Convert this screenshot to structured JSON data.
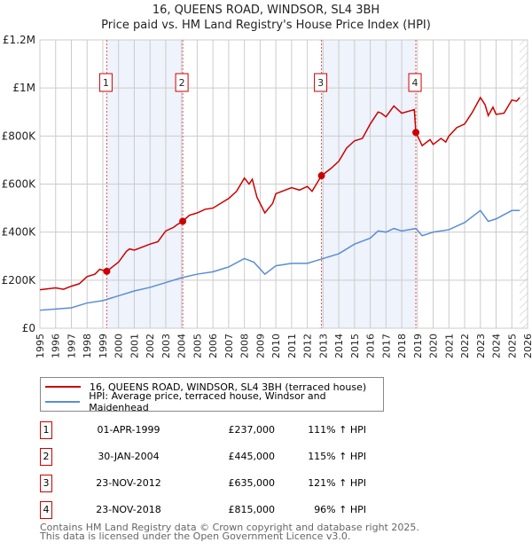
{
  "chart_data": {
    "type": "line",
    "title": "16, QUEENS ROAD, WINDSOR, SL4 3BH",
    "subtitle": "Price paid vs. HM Land Registry's House Price Index (HPI)",
    "xlim": [
      1995,
      2026
    ],
    "ylim": [
      0,
      1200000
    ],
    "x_ticks": [
      "1995",
      "1996",
      "1997",
      "1998",
      "1999",
      "2000",
      "2001",
      "2002",
      "2003",
      "2004",
      "2005",
      "2006",
      "2007",
      "2008",
      "2009",
      "2010",
      "2011",
      "2012",
      "2013",
      "2014",
      "2015",
      "2016",
      "2017",
      "2018",
      "2019",
      "2020",
      "2021",
      "2022",
      "2023",
      "2024",
      "2025",
      "2026"
    ],
    "y_ticks": [
      {
        "v": 0,
        "label": "£0"
      },
      {
        "v": 200000,
        "label": "£200K"
      },
      {
        "v": 400000,
        "label": "£400K"
      },
      {
        "v": 600000,
        "label": "£600K"
      },
      {
        "v": 800000,
        "label": "£800K"
      },
      {
        "v": 1000000,
        "label": "£1M"
      },
      {
        "v": 1200000,
        "label": "£1.2M"
      }
    ],
    "grid": true,
    "shaded_ranges": [
      [
        1999.25,
        2004.08
      ],
      [
        2012.9,
        2018.9
      ]
    ],
    "forecast_from": 2025.5,
    "series": [
      {
        "name": "16, QUEENS ROAD, WINDSOR, SL4 3BH (terraced house)",
        "color": "#cc0000",
        "x": [
          1995,
          1996,
          1996.5,
          1997,
          1997.5,
          1998,
          1998.5,
          1998.8,
          1999.25,
          2000,
          2000.5,
          2000.7,
          2001,
          2002,
          2002.5,
          2003,
          2003.5,
          2003.7,
          2004.08,
          2004.5,
          2005,
          2005.5,
          2006,
          2007,
          2007.5,
          2008,
          2008.3,
          2008.5,
          2008.8,
          2009.3,
          2009.8,
          2010,
          2011,
          2011.5,
          2012,
          2012.3,
          2012.9,
          2013.5,
          2014,
          2014.5,
          2015,
          2015.5,
          2016,
          2016.5,
          2016.7,
          2017,
          2017.5,
          2018,
          2018.8,
          2018.9,
          2019.3,
          2019.8,
          2020,
          2020.5,
          2020.8,
          2021,
          2021.5,
          2022,
          2022.5,
          2023,
          2023.3,
          2023.5,
          2023.8,
          2024,
          2024.5,
          2025,
          2025.3,
          2025.5
        ],
        "y": [
          160000,
          168000,
          162000,
          175000,
          185000,
          215000,
          225000,
          245000,
          237000,
          275000,
          320000,
          330000,
          325000,
          350000,
          360000,
          405000,
          420000,
          430000,
          445000,
          470000,
          480000,
          495000,
          500000,
          540000,
          570000,
          625000,
          600000,
          620000,
          545000,
          480000,
          520000,
          560000,
          585000,
          575000,
          590000,
          570000,
          635000,
          665000,
          695000,
          750000,
          780000,
          790000,
          850000,
          900000,
          895000,
          880000,
          925000,
          895000,
          910000,
          815000,
          760000,
          785000,
          765000,
          790000,
          775000,
          800000,
          835000,
          850000,
          900000,
          960000,
          930000,
          885000,
          920000,
          890000,
          895000,
          950000,
          945000,
          960000
        ]
      },
      {
        "name": "HPI: Average price, terraced house, Windsor and Maidenhead",
        "color": "#5b8dd4",
        "x": [
          1995,
          1996,
          1997,
          1998,
          1999,
          2000,
          2001,
          2002,
          2003,
          2004,
          2005,
          2006,
          2007,
          2008,
          2008.6,
          2009.3,
          2010,
          2011,
          2012,
          2013,
          2014,
          2015,
          2016,
          2016.5,
          2017,
          2017.5,
          2018,
          2018.9,
          2019.3,
          2020,
          2021,
          2022,
          2023,
          2023.5,
          2024,
          2025,
          2025.5
        ],
        "y": [
          75000,
          80000,
          85000,
          105000,
          115000,
          135000,
          155000,
          170000,
          190000,
          210000,
          225000,
          235000,
          255000,
          290000,
          275000,
          225000,
          260000,
          270000,
          270000,
          290000,
          310000,
          350000,
          375000,
          405000,
          400000,
          415000,
          405000,
          415000,
          385000,
          400000,
          410000,
          440000,
          490000,
          445000,
          455000,
          490000,
          490000
        ]
      }
    ],
    "sales": [
      {
        "id": "1",
        "x": 1999.25,
        "y": 237000,
        "date": "01-APR-1999",
        "price": "£237,000",
        "hpi": "111% ↑ HPI"
      },
      {
        "id": "2",
        "x": 2004.08,
        "y": 445000,
        "date": "30-JAN-2004",
        "price": "£445,000",
        "hpi": "115% ↑ HPI"
      },
      {
        "id": "3",
        "x": 2012.9,
        "y": 635000,
        "date": "23-NOV-2012",
        "price": "£635,000",
        "hpi": "121% ↑ HPI"
      },
      {
        "id": "4",
        "x": 2018.9,
        "y": 815000,
        "date": "23-NOV-2018",
        "price": "£815,000",
        "hpi": "96% ↑ HPI"
      }
    ]
  },
  "footer": {
    "line1": "Contains HM Land Registry data © Crown copyright and database right 2025.",
    "line2": "This data is licensed under the Open Government Licence v3.0."
  },
  "colors": {
    "shade": "#eef3fc",
    "grid": "#cccccc",
    "marker": "#cc0000"
  }
}
